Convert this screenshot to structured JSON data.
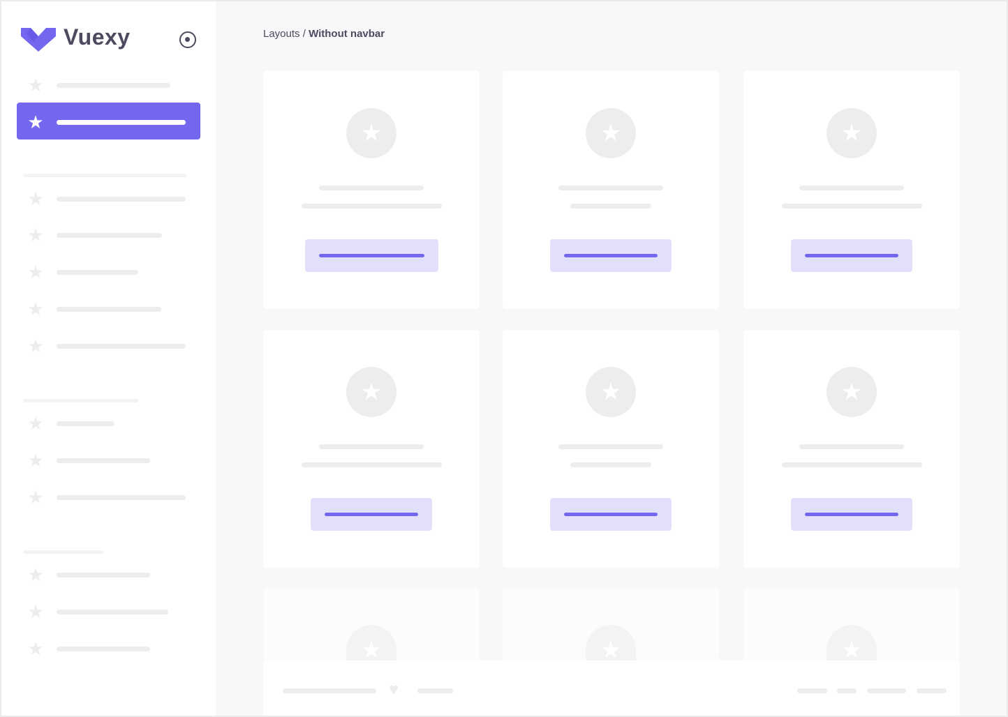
{
  "brand": {
    "name": "Vuexy",
    "accent": "#7367f0"
  },
  "breadcrumb": {
    "parent": "Layouts",
    "separator": "/",
    "current": "Without navbar"
  },
  "sidebar": {
    "active_index": 1,
    "icon": "star-icon"
  },
  "cards": {
    "count": 9,
    "icon": "star-icon"
  },
  "footer": {
    "icon": "heart-icon"
  }
}
